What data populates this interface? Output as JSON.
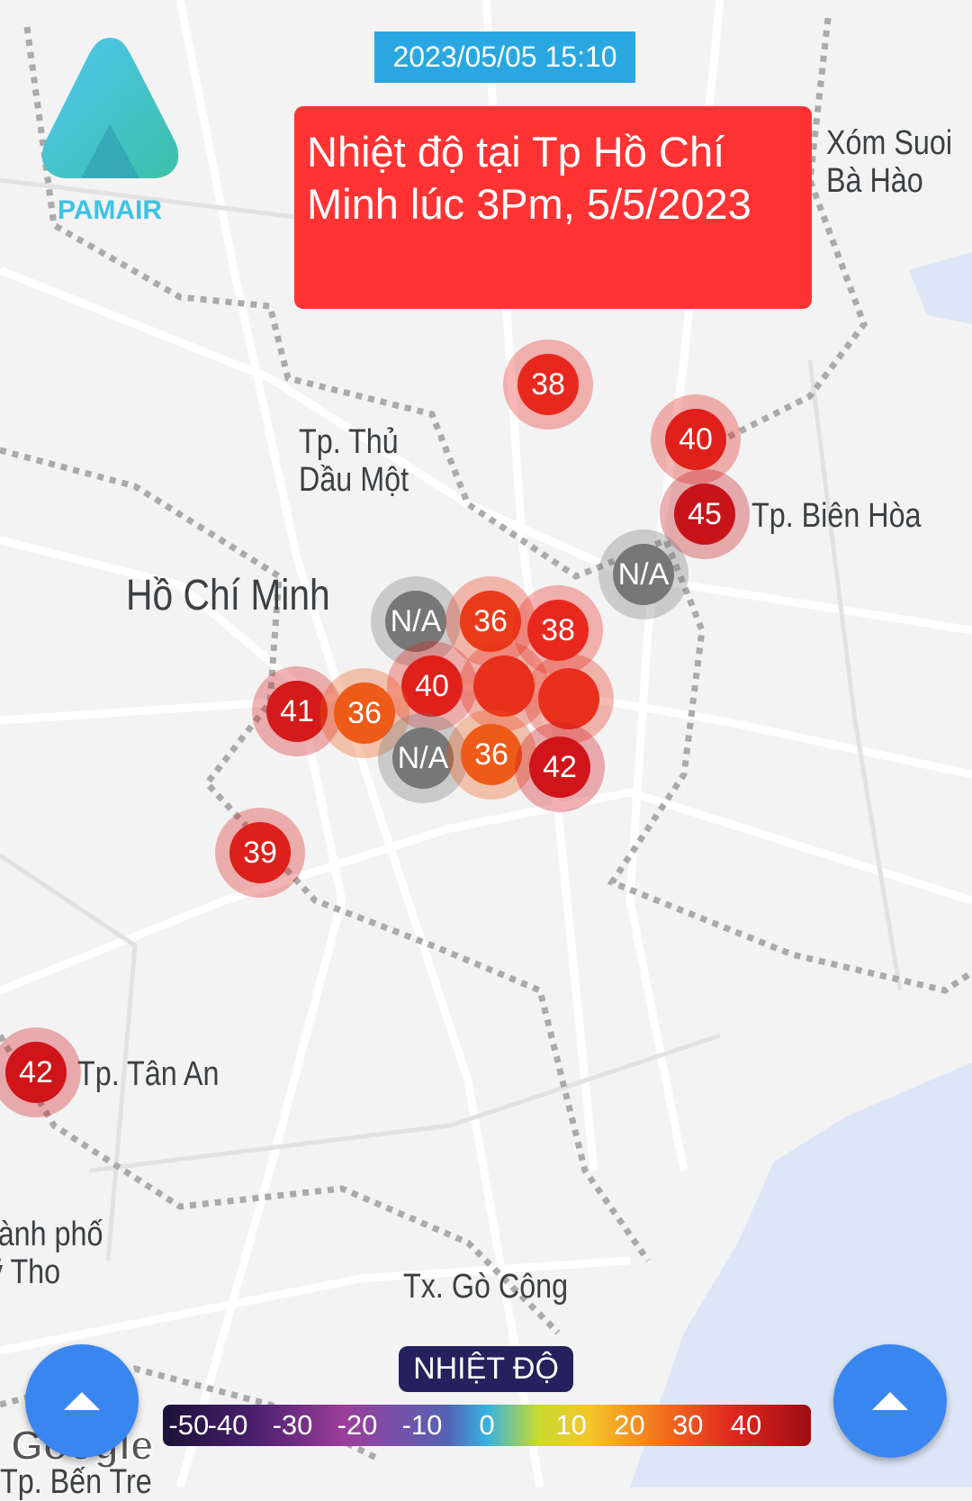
{
  "timestamp": "2023/05/05 15:10",
  "title": "Nhiệt độ tại Tp Hồ Chí Minh lúc 3Pm, 5/5/2023",
  "logo": {
    "text": "PAMAIR",
    "color": "#3ec3e4"
  },
  "places": [
    "Xóm Suoi\nBà Hào",
    "Tp. Thủ\nDầu Một",
    "Tp. Biên Hòa",
    "Hồ Chí Minh",
    "Tp. Tân An",
    "Thành phố\nMỹ Tho",
    "Tx. Gò Công",
    "Tp. Bến Tre"
  ],
  "markers": [
    {
      "value": "38",
      "color": "#e8281e"
    },
    {
      "value": "40",
      "color": "#e0201b"
    },
    {
      "value": "45",
      "color": "#c7141a"
    },
    {
      "value": "N/A",
      "color": "#777777"
    },
    {
      "value": "N/A",
      "color": "#777777"
    },
    {
      "value": "36",
      "color": "#ea3a1a"
    },
    {
      "value": "38",
      "color": "#e8281e"
    },
    {
      "value": "40",
      "color": "#e0201b"
    },
    {
      "value": "41",
      "color": "#d41a1a"
    },
    {
      "value": "36",
      "color": "#ee5a18"
    },
    {
      "value": "",
      "color": "#e8301c"
    },
    {
      "value": "",
      "color": "#e8301c"
    },
    {
      "value": "N/A",
      "color": "#777777"
    },
    {
      "value": "36",
      "color": "#ee5a18"
    },
    {
      "value": "42",
      "color": "#d0151a"
    },
    {
      "value": "39",
      "color": "#dc201b"
    },
    {
      "value": "42",
      "color": "#d0151a"
    }
  ],
  "legend": {
    "title": "NHIỆT ĐỘ",
    "ticks": [
      "-50",
      "-40",
      "-30",
      "-20",
      "-10",
      "0",
      "10",
      "20",
      "30",
      "40"
    ]
  },
  "attribution": "Google",
  "buttons": {
    "left": "expand-up",
    "right": "expand-up"
  }
}
